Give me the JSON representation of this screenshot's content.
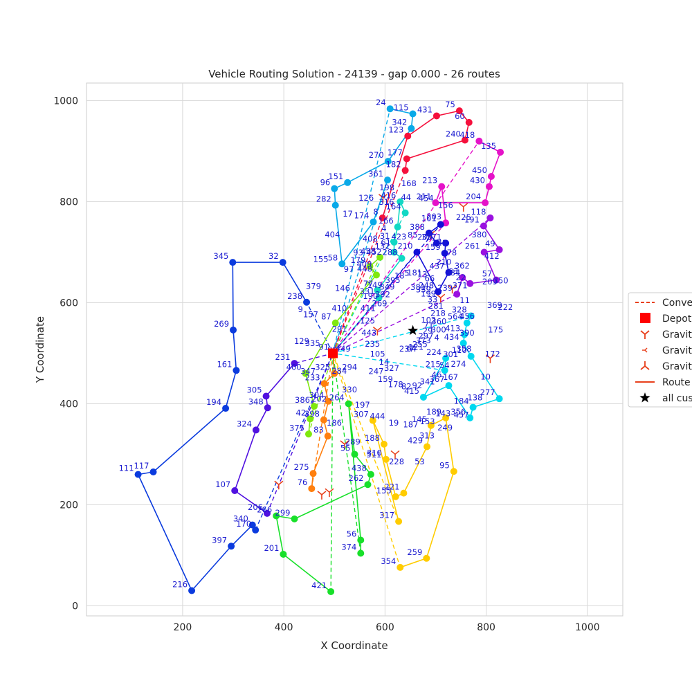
{
  "chart_data": {
    "type": "scatter",
    "title": "Vehicle Routing Solution - 24139 - gap 0.000 - 26 routes",
    "xlabel": "X Coordinate",
    "ylabel": "Y Coordinate",
    "xlim": [
      10,
      1070
    ],
    "ylim": [
      -20,
      1035
    ],
    "xticks": [
      200,
      400,
      600,
      800,
      1000
    ],
    "yticks": [
      0,
      200,
      400,
      600,
      800,
      1000
    ],
    "grid": true,
    "legend_position": "right",
    "legend": [
      {
        "label": "Conve",
        "marker": "dashed-line"
      },
      {
        "label": "Depot",
        "marker": "square"
      },
      {
        "label": "Gravit",
        "marker": "tri-down"
      },
      {
        "label": "Gravit",
        "marker": "tri-left"
      },
      {
        "label": "Gravit",
        "marker": "tri-up"
      },
      {
        "label": "Route",
        "marker": "line"
      },
      {
        "label": "all cus",
        "marker": "star"
      }
    ],
    "depot": {
      "x": 497,
      "y": 500
    },
    "centroid": {
      "x": 655,
      "y": 545
    },
    "gravity_points": [
      {
        "x": 596,
        "y": 808
      },
      {
        "x": 690,
        "y": 735
      },
      {
        "x": 733,
        "y": 628
      },
      {
        "x": 808,
        "y": 490
      },
      {
        "x": 755,
        "y": 790
      },
      {
        "x": 520,
        "y": 320
      },
      {
        "x": 475,
        "y": 220
      },
      {
        "x": 490,
        "y": 225
      },
      {
        "x": 585,
        "y": 545
      },
      {
        "x": 710,
        "y": 610
      },
      {
        "x": 390,
        "y": 240
      },
      {
        "x": 620,
        "y": 300
      }
    ],
    "routes": [
      {
        "color": "#0b3bde",
        "stops": [
          {
            "id": "238",
            "x": 445,
            "y": 601
          },
          {
            "id": "32",
            "x": 398,
            "y": 680
          },
          {
            "id": "345",
            "x": 299,
            "y": 680
          },
          {
            "id": "269",
            "x": 300,
            "y": 546
          },
          {
            "id": "161",
            "x": 306,
            "y": 466
          },
          {
            "id": "194",
            "x": 285,
            "y": 391
          },
          {
            "id": "117",
            "x": 142,
            "y": 265
          },
          {
            "id": "111",
            "x": 112,
            "y": 260
          },
          {
            "id": "216",
            "x": 218,
            "y": 30
          },
          {
            "id": "397",
            "x": 296,
            "y": 118
          },
          {
            "id": "340",
            "x": 338,
            "y": 160
          },
          {
            "id": "170",
            "x": 344,
            "y": 150
          }
        ]
      },
      {
        "color": "#09a9e8",
        "stops": [
          {
            "id": "24",
            "x": 610,
            "y": 984
          },
          {
            "id": "115",
            "x": 655,
            "y": 974
          },
          {
            "id": "342",
            "x": 652,
            "y": 945
          },
          {
            "id": "270",
            "x": 606,
            "y": 880
          },
          {
            "id": "151",
            "x": 526,
            "y": 838
          },
          {
            "id": "96",
            "x": 500,
            "y": 826
          },
          {
            "id": "282",
            "x": 502,
            "y": 793
          },
          {
            "id": "58",
            "x": 515,
            "y": 677
          },
          {
            "id": "174",
            "x": 577,
            "y": 760
          },
          {
            "id": "361",
            "x": 605,
            "y": 843
          }
        ]
      },
      {
        "color": "#f5103c",
        "stops": [
          {
            "id": "8",
            "x": 595,
            "y": 768
          },
          {
            "id": "123",
            "x": 645,
            "y": 930
          },
          {
            "id": "431",
            "x": 702,
            "y": 970
          },
          {
            "id": "75",
            "x": 747,
            "y": 980
          },
          {
            "id": "60",
            "x": 766,
            "y": 957
          },
          {
            "id": "240",
            "x": 758,
            "y": 922
          },
          {
            "id": "177",
            "x": 643,
            "y": 885
          },
          {
            "id": "182",
            "x": 640,
            "y": 862
          }
        ]
      },
      {
        "color": "#e512c8",
        "stops": [
          {
            "id": "418",
            "x": 786,
            "y": 920
          },
          {
            "id": "135",
            "x": 828,
            "y": 898
          },
          {
            "id": "450",
            "x": 810,
            "y": 850
          },
          {
            "id": "430",
            "x": 806,
            "y": 830
          },
          {
            "id": "204",
            "x": 798,
            "y": 798
          },
          {
            "id": "211",
            "x": 700,
            "y": 798
          },
          {
            "id": "213",
            "x": 712,
            "y": 830
          },
          {
            "id": "203",
            "x": 720,
            "y": 758
          }
        ]
      },
      {
        "color": "#9a10e0",
        "stops": [
          {
            "id": "118",
            "x": 808,
            "y": 768
          },
          {
            "id": "191",
            "x": 795,
            "y": 752
          },
          {
            "id": "49",
            "x": 826,
            "y": 705
          },
          {
            "id": "261",
            "x": 796,
            "y": 700
          },
          {
            "id": "57",
            "x": 820,
            "y": 645
          },
          {
            "id": "22",
            "x": 768,
            "y": 638
          },
          {
            "id": "63",
            "x": 753,
            "y": 650
          },
          {
            "id": "239",
            "x": 742,
            "y": 617
          }
        ]
      },
      {
        "color": "#1210d8",
        "stops": [
          {
            "id": "101",
            "x": 710,
            "y": 755
          },
          {
            "id": "388",
            "x": 687,
            "y": 738
          },
          {
            "id": "200",
            "x": 702,
            "y": 718
          },
          {
            "id": "271",
            "x": 720,
            "y": 718
          },
          {
            "id": "159",
            "x": 718,
            "y": 698
          },
          {
            "id": "437",
            "x": 726,
            "y": 660
          },
          {
            "id": "248",
            "x": 705,
            "y": 622
          },
          {
            "id": "210",
            "x": 663,
            "y": 700
          }
        ]
      },
      {
        "color": "#11d8c4",
        "stops": [
          {
            "id": "164",
            "x": 640,
            "y": 778
          },
          {
            "id": "416",
            "x": 630,
            "y": 800
          },
          {
            "id": "166",
            "x": 625,
            "y": 750
          },
          {
            "id": "31",
            "x": 618,
            "y": 720
          },
          {
            "id": "132",
            "x": 618,
            "y": 700
          },
          {
            "id": "288",
            "x": 633,
            "y": 688
          },
          {
            "id": "77",
            "x": 585,
            "y": 625
          },
          {
            "id": "331",
            "x": 588,
            "y": 610
          }
        ]
      },
      {
        "color": "#00d8ef",
        "stops": [
          {
            "id": "328",
            "x": 770,
            "y": 574
          },
          {
            "id": "564",
            "x": 762,
            "y": 560
          },
          {
            "id": "413",
            "x": 757,
            "y": 537
          },
          {
            "id": "434",
            "x": 755,
            "y": 520
          },
          {
            "id": "110",
            "x": 770,
            "y": 494
          },
          {
            "id": "277",
            "x": 826,
            "y": 410
          },
          {
            "id": "184",
            "x": 774,
            "y": 393
          },
          {
            "id": "356",
            "x": 768,
            "y": 372
          },
          {
            "id": "367",
            "x": 726,
            "y": 436
          },
          {
            "id": "415",
            "x": 676,
            "y": 413
          },
          {
            "id": "224",
            "x": 720,
            "y": 490
          },
          {
            "id": "215",
            "x": 718,
            "y": 466
          }
        ]
      },
      {
        "color": "#18e02a",
        "stops": [
          {
            "id": "421",
            "x": 493,
            "y": 28
          },
          {
            "id": "201",
            "x": 399,
            "y": 102
          },
          {
            "id": "266",
            "x": 385,
            "y": 178
          },
          {
            "id": "299",
            "x": 421,
            "y": 172
          },
          {
            "id": "262",
            "x": 566,
            "y": 240
          },
          {
            "id": "438",
            "x": 572,
            "y": 260
          },
          {
            "id": "55",
            "x": 540,
            "y": 300
          },
          {
            "id": "264",
            "x": 528,
            "y": 400
          },
          {
            "id": "56",
            "x": 552,
            "y": 130
          },
          {
            "id": "374",
            "x": 552,
            "y": 104
          }
        ]
      },
      {
        "color": "#ffcc00",
        "stops": [
          {
            "id": "354",
            "x": 630,
            "y": 76
          },
          {
            "id": "259",
            "x": 682,
            "y": 94
          },
          {
            "id": "95",
            "x": 736,
            "y": 266
          },
          {
            "id": "189",
            "x": 720,
            "y": 372
          },
          {
            "id": "145",
            "x": 691,
            "y": 357
          },
          {
            "id": "429",
            "x": 683,
            "y": 315
          },
          {
            "id": "221",
            "x": 637,
            "y": 223
          },
          {
            "id": "155",
            "x": 621,
            "y": 216
          },
          {
            "id": "310",
            "x": 602,
            "y": 290
          },
          {
            "id": "188",
            "x": 598,
            "y": 320
          },
          {
            "id": "307",
            "x": 576,
            "y": 367
          },
          {
            "id": "317",
            "x": 627,
            "y": 167
          }
        ]
      },
      {
        "color": "#ff7f0e",
        "stops": [
          {
            "id": "91",
            "x": 497,
            "y": 500
          },
          {
            "id": "325",
            "x": 500,
            "y": 460
          },
          {
            "id": "233",
            "x": 480,
            "y": 440
          },
          {
            "id": "304",
            "x": 488,
            "y": 405
          },
          {
            "id": "398",
            "x": 479,
            "y": 368
          },
          {
            "id": "83",
            "x": 487,
            "y": 336
          },
          {
            "id": "275",
            "x": 458,
            "y": 262
          },
          {
            "id": "76",
            "x": 455,
            "y": 232
          }
        ]
      },
      {
        "color": "#7fe80e",
        "stops": [
          {
            "id": "458",
            "x": 590,
            "y": 690
          },
          {
            "id": "179",
            "x": 570,
            "y": 672
          },
          {
            "id": "448",
            "x": 583,
            "y": 655
          },
          {
            "id": "87",
            "x": 502,
            "y": 560
          },
          {
            "id": "400",
            "x": 443,
            "y": 460
          },
          {
            "id": "386",
            "x": 460,
            "y": 395
          },
          {
            "id": "42",
            "x": 452,
            "y": 370
          },
          {
            "id": "375",
            "x": 449,
            "y": 340
          }
        ]
      },
      {
        "color": "#5010e0",
        "stops": [
          {
            "id": "231",
            "x": 421,
            "y": 480
          },
          {
            "id": "305",
            "x": 365,
            "y": 415
          },
          {
            "id": "348",
            "x": 368,
            "y": 392
          },
          {
            "id": "324",
            "x": 345,
            "y": 348
          },
          {
            "id": "107",
            "x": 303,
            "y": 228
          },
          {
            "id": "206",
            "x": 367,
            "y": 183
          }
        ]
      }
    ],
    "annotations": [
      "102",
      "409",
      "53",
      "210",
      "335",
      "301",
      "316",
      "327",
      "209",
      "269",
      "143",
      "381",
      "294",
      "71",
      "452",
      "228",
      "384",
      "157",
      "54",
      "44",
      "14",
      "369",
      "392",
      "153",
      "339",
      "449",
      "29",
      "61",
      "511",
      "371",
      "379",
      "46",
      "454",
      "105",
      "175",
      "349",
      "187",
      "199",
      "291",
      "297",
      "423",
      "289",
      "11",
      "155",
      "341",
      "156",
      "235",
      "172",
      "395",
      "19",
      "33",
      "410",
      "373",
      "85",
      "186",
      "456",
      "404",
      "92",
      "225",
      "443",
      "10",
      "18",
      "444",
      "281",
      "146",
      "255",
      "35",
      "202",
      "390",
      "17",
      "82",
      "380",
      "125",
      "138",
      "5",
      "197",
      "218",
      "97",
      "121",
      "242",
      "347",
      "358",
      "126",
      "178",
      "412",
      "411",
      "457",
      "181",
      "330",
      "360",
      "93",
      "64",
      "78",
      "129",
      "274",
      "198",
      "159",
      "350",
      "190",
      "249",
      "13",
      "284",
      "300",
      "408",
      "237",
      "362",
      "9",
      "167",
      "168",
      "247",
      "222",
      "149",
      "313",
      "66",
      "88",
      "4",
      "4"
    ]
  }
}
